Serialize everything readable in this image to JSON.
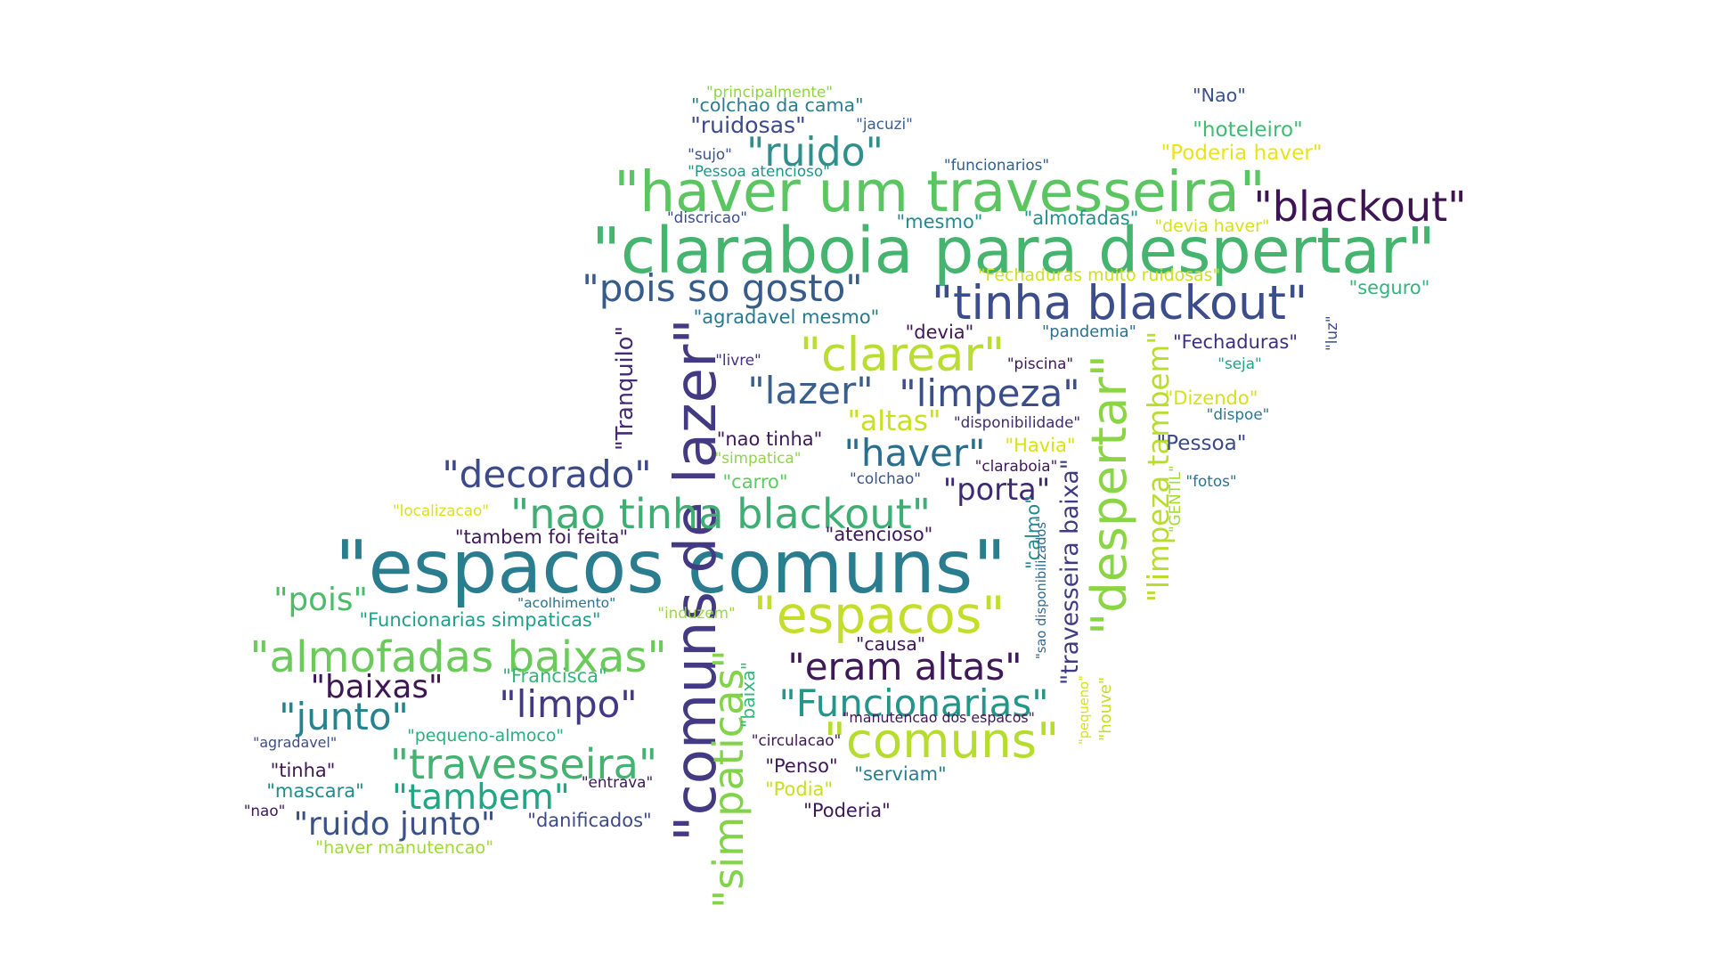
{
  "words": [
    {
      "text": "\"espacos comuns\"",
      "color": "#2a7d8e",
      "vertical": false
    },
    {
      "text": "\"claraboia para despertar\"",
      "color": "#45b46e",
      "vertical": false
    },
    {
      "text": "\"haver um travesseira\"",
      "color": "#5bc562",
      "vertical": false
    },
    {
      "text": "\"tinha blackout\"",
      "color": "#3b4d8a",
      "vertical": false
    },
    {
      "text": "\"comuns de lazer\"",
      "color": "#433a83",
      "vertical": true
    },
    {
      "text": "\"espacos\"",
      "color": "#c2de2a",
      "vertical": false
    },
    {
      "text": "\"comuns\"",
      "color": "#b6dc2e",
      "vertical": false
    },
    {
      "text": "\"despertar\"",
      "color": "#8ad544",
      "vertical": true
    },
    {
      "text": "\"clarear\"",
      "color": "#b9dd30",
      "vertical": false
    },
    {
      "text": "\"almofadas baixas\"",
      "color": "#6acb5a",
      "vertical": false
    },
    {
      "text": "\"nao tinha blackout\"",
      "color": "#3fae72",
      "vertical": false
    },
    {
      "text": "\"pois so gosto\"",
      "color": "#375c8c",
      "vertical": false
    },
    {
      "text": "\"blackout\"",
      "color": "#3e1455",
      "vertical": false
    },
    {
      "text": "\"ruido\"",
      "color": "#2f8f8a",
      "vertical": false
    },
    {
      "text": "\"decorado\"",
      "color": "#3d4a89",
      "vertical": false
    },
    {
      "text": "\"limpeza\"",
      "color": "#3b4d8a",
      "vertical": false
    },
    {
      "text": "\"lazer\"",
      "color": "#3b5f8c",
      "vertical": false
    },
    {
      "text": "\"haver\"",
      "color": "#2a6e8e",
      "vertical": false
    },
    {
      "text": "\"eram altas\"",
      "color": "#3e1858",
      "vertical": false
    },
    {
      "text": "\"Funcionarias\"",
      "color": "#23958a",
      "vertical": false
    },
    {
      "text": "\"simpaticas\"",
      "color": "#82d34a",
      "vertical": true
    },
    {
      "text": "\"travesseira\"",
      "color": "#44b270",
      "vertical": false
    },
    {
      "text": "\"tambem\"",
      "color": "#21a685",
      "vertical": false
    },
    {
      "text": "\"junto\"",
      "color": "#25838e",
      "vertical": false
    },
    {
      "text": "\"limpo\"",
      "color": "#413a83",
      "vertical": false
    },
    {
      "text": "\"ruido junto\"",
      "color": "#3a528b",
      "vertical": false
    },
    {
      "text": "\"limpeza tambem\"",
      "color": "#b8dd2e",
      "vertical": true
    },
    {
      "text": "\"travesseira baixa\"",
      "color": "#403c84",
      "vertical": true
    },
    {
      "text": "\"baixas\"",
      "color": "#3e1755",
      "vertical": false
    },
    {
      "text": "\"pois\"",
      "color": "#4cbc6a",
      "vertical": false
    },
    {
      "text": "\"porta\"",
      "color": "#3d2a74",
      "vertical": false
    },
    {
      "text": "\"altas\"",
      "color": "#c7e020",
      "vertical": false
    },
    {
      "text": "\"Tranquilo\"",
      "color": "#452a75",
      "vertical": true
    },
    {
      "text": "\"colchao da cama\"",
      "color": "#2d7b8e",
      "vertical": false
    },
    {
      "text": "\"ruidosas\"",
      "color": "#3d4a89",
      "vertical": false
    },
    {
      "text": "\"principalmente\"",
      "color": "#8ed641",
      "vertical": false
    },
    {
      "text": "\"jacuzi\"",
      "color": "#3b5f8c",
      "vertical": false
    },
    {
      "text": "\"sujo\"",
      "color": "#3b528b",
      "vertical": false
    },
    {
      "text": "\"Pessoa atencioso\"",
      "color": "#1f968b",
      "vertical": false
    },
    {
      "text": "\"funcionarios\"",
      "color": "#30608d",
      "vertical": false
    },
    {
      "text": "\"Nao\"",
      "color": "#3b528b",
      "vertical": false
    },
    {
      "text": "\"hoteleiro\"",
      "color": "#3fbc73",
      "vertical": false
    },
    {
      "text": "\"Poderia haver\"",
      "color": "#e8e419",
      "vertical": false
    },
    {
      "text": "\"discricao\"",
      "color": "#3d4d8a",
      "vertical": false
    },
    {
      "text": "\"mesmo\"",
      "color": "#238a8d",
      "vertical": false
    },
    {
      "text": "\"almofadas\"",
      "color": "#21918c",
      "vertical": false
    },
    {
      "text": "\"devia haver\"",
      "color": "#d5e21a",
      "vertical": false
    },
    {
      "text": "\"Fechaduras muito ruidosas\"",
      "color": "#cde11d",
      "vertical": false
    },
    {
      "text": "\"seguro\"",
      "color": "#31b57b",
      "vertical": false
    },
    {
      "text": "\"agradavel mesmo\"",
      "color": "#2a788e",
      "vertical": false
    },
    {
      "text": "\"devia\"",
      "color": "#3e1858",
      "vertical": false
    },
    {
      "text": "\"pandemia\"",
      "color": "#2d708e",
      "vertical": false
    },
    {
      "text": "\"Fechaduras\"",
      "color": "#3b2f80",
      "vertical": false
    },
    {
      "text": "\"luz\"",
      "color": "#3e4c8a",
      "vertical": true
    },
    {
      "text": "\"seja\"",
      "color": "#20a386",
      "vertical": false
    },
    {
      "text": "\"livre\"",
      "color": "#46327e",
      "vertical": false
    },
    {
      "text": "\"piscina\"",
      "color": "#3e1858",
      "vertical": false
    },
    {
      "text": "\"Dizendo\"",
      "color": "#d2e21b",
      "vertical": false
    },
    {
      "text": "\"dispoe\"",
      "color": "#2a778e",
      "vertical": false
    },
    {
      "text": "\"disponibilidade\"",
      "color": "#3e2c70",
      "vertical": false
    },
    {
      "text": "\"nao tinha\"",
      "color": "#3e1858",
      "vertical": false
    },
    {
      "text": "\"simpatica\"",
      "color": "#8ed645",
      "vertical": false
    },
    {
      "text": "\"Havia\"",
      "color": "#d8e219",
      "vertical": false
    },
    {
      "text": "\"Pessoa\"",
      "color": "#3d4a89",
      "vertical": false
    },
    {
      "text": "\"claraboia\"",
      "color": "#3e1858",
      "vertical": false
    },
    {
      "text": "\"carro\"",
      "color": "#5ec962",
      "vertical": false
    },
    {
      "text": "\"colchao\"",
      "color": "#3b528b",
      "vertical": false
    },
    {
      "text": "\"fotos\"",
      "color": "#2a768e",
      "vertical": false
    },
    {
      "text": "\"GENTIL\"",
      "color": "#a5db36",
      "vertical": true
    },
    {
      "text": "\"localizacao\"",
      "color": "#d8e219",
      "vertical": false
    },
    {
      "text": "\"tambem foi feita\"",
      "color": "#3e1858",
      "vertical": false
    },
    {
      "text": "\"atencioso\"",
      "color": "#3e1858",
      "vertical": false
    },
    {
      "text": "\"calmo\"",
      "color": "#238a8d",
      "vertical": true
    },
    {
      "text": "\"sao disponibilizados\"",
      "color": "#31688e",
      "vertical": true
    },
    {
      "text": "\"acolhimento\"",
      "color": "#2c738e",
      "vertical": false
    },
    {
      "text": "\"induzem\"",
      "color": "#9bd93c",
      "vertical": false
    },
    {
      "text": "\"Funcionarias simpaticas\"",
      "color": "#1f9e89",
      "vertical": false
    },
    {
      "text": "\"causa\"",
      "color": "#3e1858",
      "vertical": false
    },
    {
      "text": "\"Francisca\"",
      "color": "#31b57b",
      "vertical": false
    },
    {
      "text": "\"baixa\"",
      "color": "#35b779",
      "vertical": true
    },
    {
      "text": "\"pequeno-almoco\"",
      "color": "#29af7f",
      "vertical": false
    },
    {
      "text": "\"manutencao dos espacos\"",
      "color": "#3e1858",
      "vertical": false
    },
    {
      "text": "\"pequeno\"",
      "color": "#d5e21a",
      "vertical": true
    },
    {
      "text": "\"houve\"",
      "color": "#c0df25",
      "vertical": true
    },
    {
      "text": "\"agradavel\"",
      "color": "#3e4c8a",
      "vertical": false
    },
    {
      "text": "\"circulacao\"",
      "color": "#3e1858",
      "vertical": false
    },
    {
      "text": "\"Penso\"",
      "color": "#3e1858",
      "vertical": false
    },
    {
      "text": "\"tinha\"",
      "color": "#3e1858",
      "vertical": false
    },
    {
      "text": "\"serviam\"",
      "color": "#2a7d8e",
      "vertical": false
    },
    {
      "text": "\"mascara\"",
      "color": "#238a8d",
      "vertical": false
    },
    {
      "text": "\"entrava\"",
      "color": "#3e1858",
      "vertical": false
    },
    {
      "text": "\"Podia\"",
      "color": "#c8e020",
      "vertical": false
    },
    {
      "text": "\"nao\"",
      "color": "#3e1858",
      "vertical": false
    },
    {
      "text": "\"danificados\"",
      "color": "#3d4a89",
      "vertical": false
    },
    {
      "text": "\"Poderia\"",
      "color": "#3e1858",
      "vertical": false
    },
    {
      "text": "\"haver manutencao\"",
      "color": "#a0da39",
      "vertical": false
    }
  ]
}
